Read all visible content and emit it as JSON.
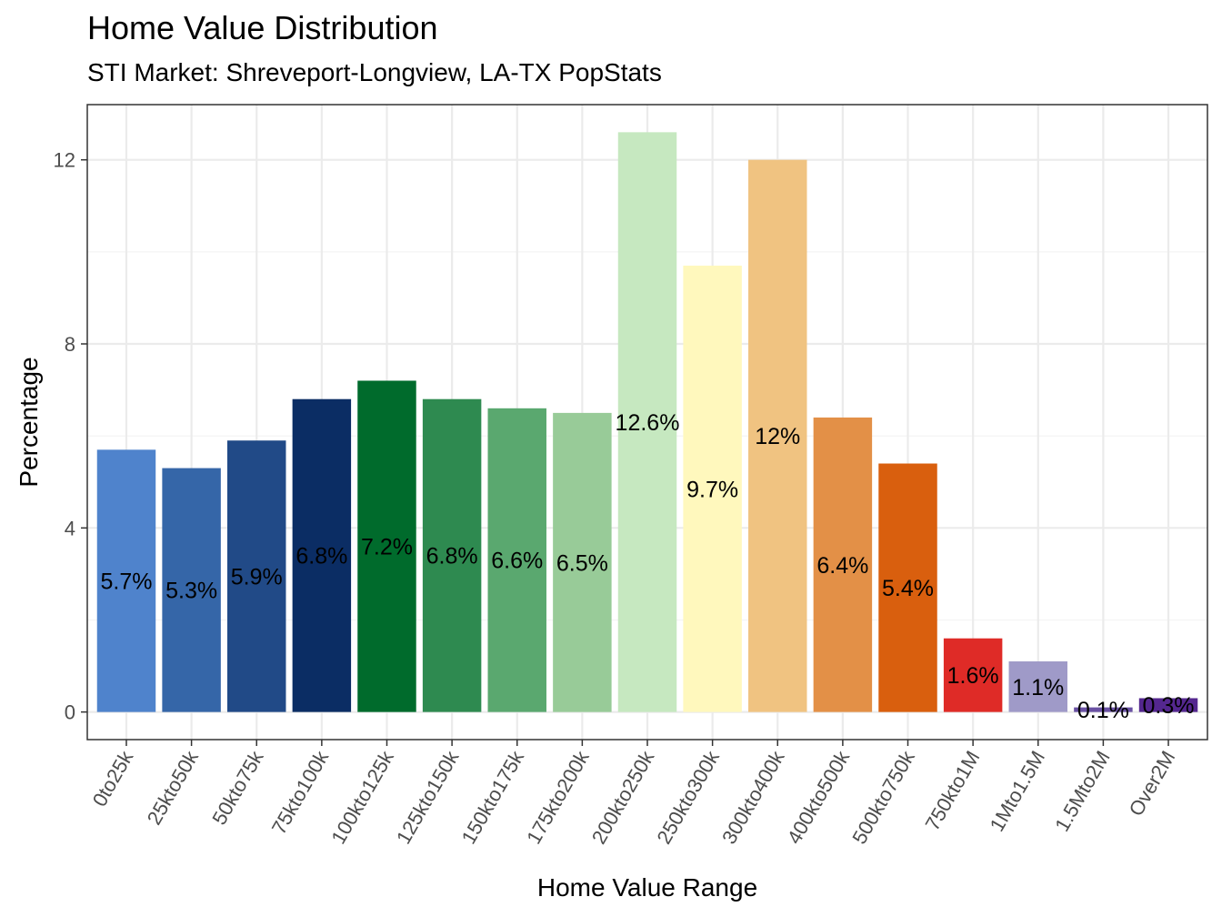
{
  "chart_data": {
    "type": "bar",
    "title": "Home Value Distribution",
    "subtitle": "STI Market: Shreveport-Longview, LA-TX PopStats",
    "xlabel": "Home Value Range",
    "ylabel": "Percentage",
    "ylim": [
      -0.6,
      13.2
    ],
    "yticks": [
      0,
      4,
      8,
      12
    ],
    "grid": true,
    "legend": "none",
    "categories": [
      "0to25k",
      "25kto50k",
      "50kto75k",
      "75kto100k",
      "100kto125k",
      "125kto150k",
      "150kto175k",
      "175kto200k",
      "200kto250k",
      "250kto300k",
      "300kto400k",
      "400kto500k",
      "500kto750k",
      "750kto1M",
      "1Mto1.5M",
      "1.5Mto2M",
      "Over2M"
    ],
    "values": [
      5.7,
      5.3,
      5.9,
      6.8,
      7.2,
      6.8,
      6.6,
      6.5,
      12.6,
      9.7,
      12.0,
      6.4,
      5.4,
      1.6,
      1.1,
      0.1,
      0.3
    ],
    "labels": [
      "5.7%",
      "5.3%",
      "5.9%",
      "6.8%",
      "7.2%",
      "6.8%",
      "6.6%",
      "6.5%",
      "12.6%",
      "9.7%",
      "12%",
      "6.4%",
      "5.4%",
      "1.6%",
      "1.1%",
      "0.1%",
      "0.3%"
    ],
    "colors": [
      "#4f83cc",
      "#3566a8",
      "#214a87",
      "#0b2d64",
      "#006b2c",
      "#2e8a50",
      "#5aa86f",
      "#98cb98",
      "#c6e8c0",
      "#fff8bd",
      "#f0c381",
      "#e39047",
      "#d95f0e",
      "#df2b27",
      "#9f9ac8",
      "#6a51a3",
      "#54278f"
    ]
  }
}
